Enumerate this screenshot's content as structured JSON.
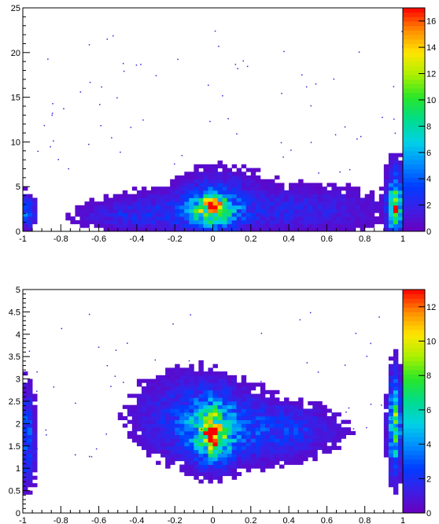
{
  "chart_data": [
    {
      "type": "heatmap",
      "title": "",
      "xlabel": "",
      "ylabel": "",
      "xlim": [
        -1,
        1
      ],
      "ylim": [
        0,
        25
      ],
      "zlim": [
        0,
        17
      ],
      "x_ticks": [
        "-1",
        "-0.8",
        "-0.6",
        "-0.4",
        "-0.2",
        "0",
        "0.2",
        "0.4",
        "0.6",
        "0.8",
        "1"
      ],
      "x_tick_values": [
        -1,
        -0.8,
        -0.6,
        -0.4,
        -0.2,
        0,
        0.2,
        0.4,
        0.6,
        0.8,
        1
      ],
      "y_ticks": [
        "0",
        "5",
        "10",
        "15",
        "20",
        "25"
      ],
      "y_tick_values": [
        0,
        5,
        10,
        15,
        20,
        25
      ],
      "z_ticks": [
        "0",
        "2",
        "4",
        "6",
        "8",
        "10",
        "12",
        "14",
        "16"
      ],
      "z_tick_values": [
        0,
        2,
        4,
        6,
        8,
        10,
        12,
        14,
        16
      ],
      "grid": false,
      "legend": "colorbar-right",
      "hotspots": [
        {
          "x": 0.0,
          "y": 2.5,
          "sx": 0.09,
          "sy": 1.5,
          "amp": 8
        },
        {
          "x": 0.0,
          "y": 2.8,
          "sx": 0.035,
          "sy": 0.6,
          "amp": 7
        },
        {
          "x": 0.96,
          "y": 3.0,
          "sx": 0.025,
          "sy": 2.6,
          "amp": 9
        },
        {
          "x": 0.965,
          "y": 2.2,
          "sx": 0.012,
          "sy": 0.6,
          "amp": 9
        },
        {
          "x": -0.98,
          "y": 2.2,
          "sx": 0.03,
          "sy": 1.2,
          "amp": 4
        },
        {
          "x": -0.2,
          "y": 2.2,
          "sx": 0.25,
          "sy": 1.5,
          "amp": 2.2
        },
        {
          "x": 0.45,
          "y": 2.5,
          "sx": 0.3,
          "sy": 1.6,
          "amp": 2.0
        },
        {
          "x": -0.5,
          "y": 1.6,
          "sx": 0.15,
          "sy": 0.8,
          "amp": 1.2
        },
        {
          "x": 0.05,
          "y": 5.5,
          "sx": 0.15,
          "sy": 1.5,
          "amp": 1.0
        }
      ]
    },
    {
      "type": "heatmap",
      "title": "",
      "xlabel": "",
      "ylabel": "",
      "xlim": [
        -1,
        1
      ],
      "ylim": [
        0,
        5
      ],
      "zlim": [
        0,
        13
      ],
      "x_ticks": [
        "-1",
        "-0.8",
        "-0.6",
        "-0.4",
        "-0.2",
        "0",
        "0.2",
        "0.4",
        "0.6",
        "0.8",
        "1"
      ],
      "x_tick_values": [
        -1,
        -0.8,
        -0.6,
        -0.4,
        -0.2,
        0,
        0.2,
        0.4,
        0.6,
        0.8,
        1
      ],
      "y_ticks": [
        "0",
        "0.5",
        "1",
        "1.5",
        "2",
        "2.5",
        "3",
        "3.5",
        "4",
        "4.5",
        "5"
      ],
      "y_tick_values": [
        0,
        0.5,
        1,
        1.5,
        2,
        2.5,
        3,
        3.5,
        4,
        4.5,
        5
      ],
      "z_ticks": [
        "0",
        "2",
        "4",
        "6",
        "8",
        "10",
        "12"
      ],
      "z_tick_values": [
        0,
        2,
        4,
        6,
        8,
        10,
        12
      ],
      "grid": false,
      "legend": "colorbar-right",
      "hotspots": [
        {
          "x": 0.0,
          "y": 1.8,
          "sx": 0.07,
          "sy": 0.45,
          "amp": 6
        },
        {
          "x": 0.0,
          "y": 1.7,
          "sx": 0.025,
          "sy": 0.2,
          "amp": 5
        },
        {
          "x": -0.1,
          "y": 2.2,
          "sx": 0.2,
          "sy": 0.6,
          "amp": 2.2
        },
        {
          "x": 0.2,
          "y": 1.8,
          "sx": 0.25,
          "sy": 0.45,
          "amp": 1.8
        },
        {
          "x": 0.45,
          "y": 1.9,
          "sx": 0.15,
          "sy": 0.3,
          "amp": 1.0
        },
        {
          "x": 0.96,
          "y": 2.0,
          "sx": 0.022,
          "sy": 0.7,
          "amp": 7
        },
        {
          "x": -0.98,
          "y": 1.7,
          "sx": 0.03,
          "sy": 0.7,
          "amp": 3
        }
      ]
    }
  ]
}
